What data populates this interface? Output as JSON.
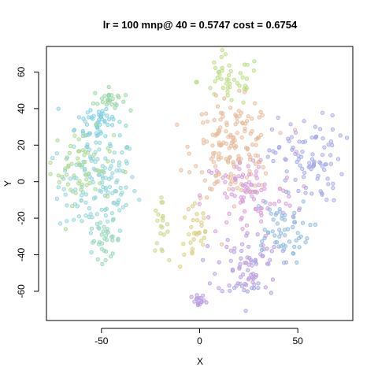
{
  "chart_data": {
    "type": "scatter",
    "title": "lr = 100 mnp@ 40 = 0.5747 cost = 0.6754",
    "xlabel": "X",
    "ylabel": "Y",
    "xlim": [
      -78,
      78
    ],
    "ylim": [
      -76,
      74
    ],
    "xticks": [
      -50,
      0,
      50
    ],
    "yticks": [
      -60,
      -40,
      -20,
      0,
      20,
      40,
      60
    ],
    "grid": false,
    "legend": "none",
    "clusters": [
      {
        "color": "#8ed4d8",
        "center": [
          -52,
          -2
        ],
        "spread": [
          10,
          14
        ],
        "count": 140
      },
      {
        "color": "#7fd0df",
        "center": [
          -51,
          33
        ],
        "spread": [
          6,
          6
        ],
        "count": 55
      },
      {
        "color": "#98d6a0",
        "center": [
          -46,
          45
        ],
        "spread": [
          4,
          3
        ],
        "count": 25
      },
      {
        "color": "#a6d98d",
        "center": [
          -60,
          8
        ],
        "spread": [
          8,
          10
        ],
        "count": 55
      },
      {
        "color": "#8fd7b8",
        "center": [
          -48,
          -32
        ],
        "spread": [
          4,
          5
        ],
        "count": 30
      },
      {
        "color": "#c6d782",
        "center": [
          -20,
          -25
        ],
        "spread": [
          2,
          7
        ],
        "count": 20
      },
      {
        "color": "#d9cf7e",
        "center": [
          -2,
          -28
        ],
        "spread": [
          4,
          10
        ],
        "count": 30
      },
      {
        "color": "#b7dd7d",
        "center": [
          15,
          55
        ],
        "spread": [
          8,
          7
        ],
        "count": 45
      },
      {
        "color": "#e7b99a",
        "center": [
          17,
          18
        ],
        "spread": [
          10,
          13
        ],
        "count": 160
      },
      {
        "color": "#d79ad8",
        "center": [
          25,
          -8
        ],
        "spread": [
          12,
          12
        ],
        "count": 90
      },
      {
        "color": "#b99be0",
        "center": [
          25,
          -45
        ],
        "spread": [
          8,
          9
        ],
        "count": 70
      },
      {
        "color": "#8fb8e0",
        "center": [
          40,
          -27
        ],
        "spread": [
          8,
          9
        ],
        "count": 60
      },
      {
        "color": "#a3a8e8",
        "center": [
          55,
          12
        ],
        "spread": [
          9,
          12
        ],
        "count": 90
      },
      {
        "color": "#b99ae0",
        "center": [
          0,
          -66
        ],
        "spread": [
          2,
          2
        ],
        "count": 16
      },
      {
        "color": "#9fa3e2",
        "center": [
          25,
          -59
        ],
        "spread": [
          5,
          2
        ],
        "count": 10
      }
    ]
  }
}
